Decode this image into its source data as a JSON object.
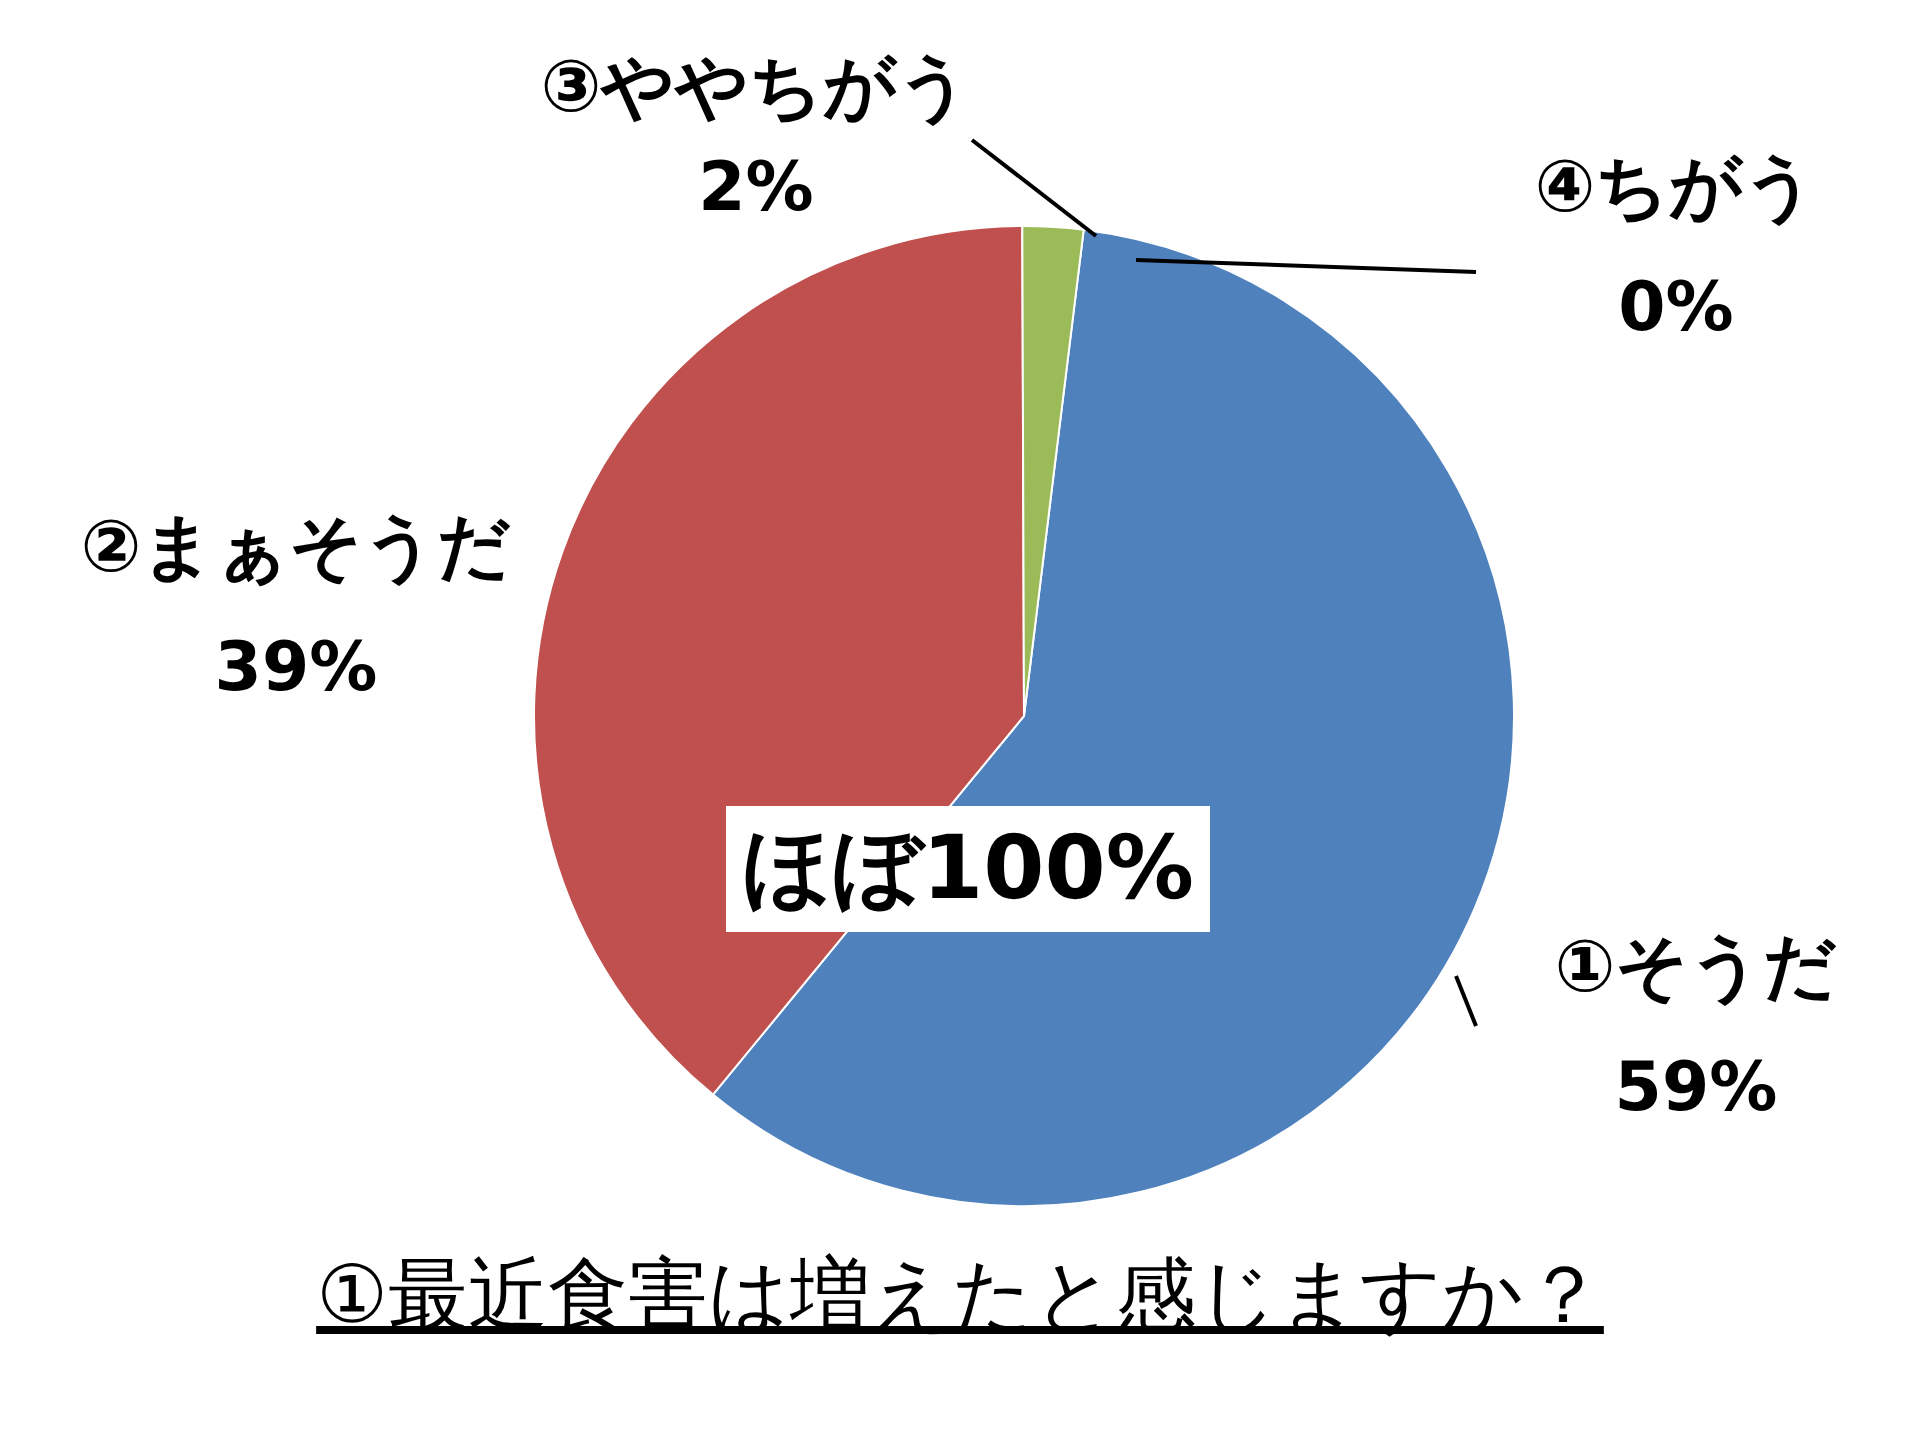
{
  "chart_data": {
    "type": "pie",
    "title": "①最近食害は増えたと感じますか？",
    "categories": [
      "①そうだ",
      "②まぁそうだ",
      "③ややちがう",
      "④ちがう"
    ],
    "values": [
      59,
      39,
      2,
      0
    ],
    "colors": [
      "#4f81bd",
      "#c0504d",
      "#9bbb59",
      "#8064a2"
    ],
    "value_labels": [
      "59%",
      "39%",
      "2%",
      "0%"
    ],
    "annotations": [
      "ほぼ100%"
    ]
  }
}
